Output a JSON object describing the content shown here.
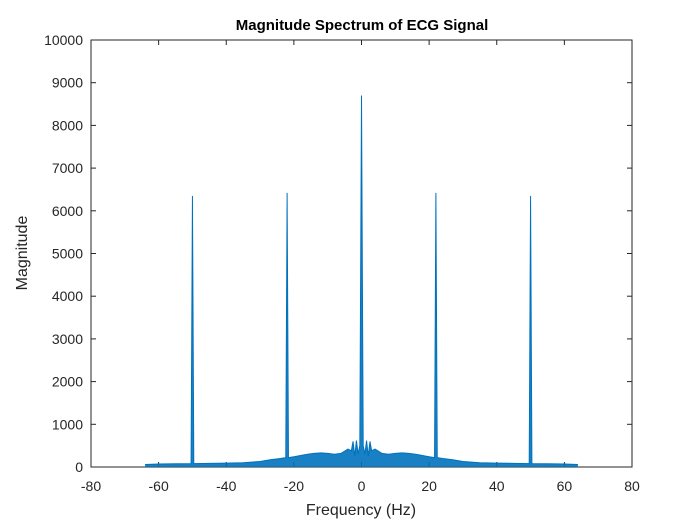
{
  "chart_data": {
    "type": "line",
    "title": "Magnitude Spectrum of  ECG Signal",
    "xlabel": "Frequency (Hz)",
    "ylabel": "Magnitude",
    "xlim": [
      -80,
      80
    ],
    "ylim": [
      0,
      10000
    ],
    "xticks": [
      -80,
      -60,
      -40,
      -20,
      0,
      20,
      40,
      60,
      80
    ],
    "yticks": [
      0,
      1000,
      2000,
      3000,
      4000,
      5000,
      6000,
      7000,
      8000,
      9000,
      10000
    ],
    "grid": false,
    "series": [
      {
        "color": "#0072BD",
        "x": [
          -64,
          -60,
          -55,
          -50.4,
          -50,
          -49.6,
          -45,
          -40,
          -35,
          -30,
          -27,
          -24,
          -22.4,
          -22,
          -21.6,
          -20,
          -18,
          -16,
          -14,
          -12,
          -10,
          -8,
          -6,
          -4,
          -3,
          -2.5,
          -2,
          -1.5,
          -1,
          -0.5,
          0,
          0.5,
          1,
          1.5,
          2,
          2.5,
          3,
          4,
          6,
          8,
          10,
          12,
          14,
          16,
          18,
          20,
          21.6,
          22,
          22.4,
          24,
          27,
          30,
          35,
          40,
          45,
          49.6,
          50,
          50.4,
          55,
          60,
          64
        ],
        "y": [
          60,
          70,
          75,
          80,
          6350,
          80,
          85,
          90,
          100,
          130,
          170,
          200,
          220,
          6420,
          220,
          240,
          270,
          300,
          320,
          330,
          320,
          300,
          320,
          420,
          380,
          600,
          250,
          620,
          300,
          500,
          8700,
          500,
          300,
          620,
          250,
          600,
          380,
          420,
          320,
          300,
          320,
          330,
          320,
          300,
          270,
          240,
          220,
          6420,
          220,
          200,
          170,
          130,
          100,
          90,
          85,
          80,
          6350,
          80,
          75,
          70,
          60
        ]
      }
    ]
  }
}
